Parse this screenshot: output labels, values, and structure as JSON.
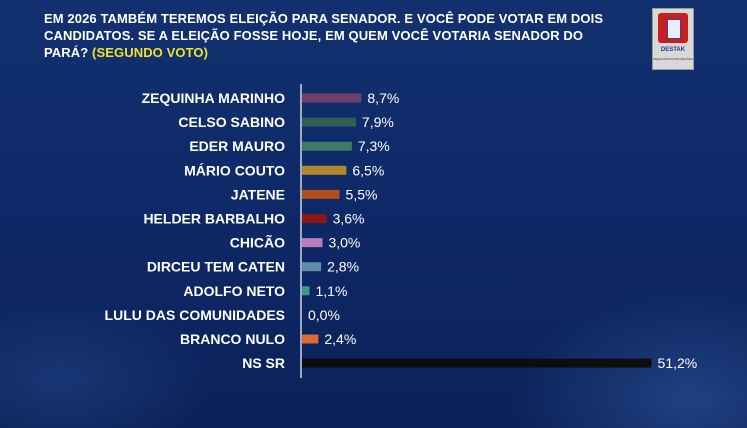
{
  "header": {
    "question": "EM 2026 TAMBÉM TEREMOS ELEIÇÃO PARA SENADOR. E VOCÊ PODE VOTAR EM DOIS CANDIDATOS. SE A ELEIÇÃO FOSSE HOJE, EM QUEM VOCÊ VOTARIA SENADOR DO PARÁ?",
    "highlight": "(SEGUNDO VOTO)"
  },
  "logo": {
    "brand": "DESTAK",
    "tagline": "PESQUISAS E PROJEÇÕES"
  },
  "colors": {
    "background": "#0f2a68",
    "highlight": "#f2e22a",
    "axis": "#ffffff"
  },
  "chart_data": {
    "type": "bar",
    "orientation": "horizontal",
    "categories": [
      "ZEQUINHA MARINHO",
      "CELSO SABINO",
      "EDER MAURO",
      "MÁRIO COUTO",
      "JATENE",
      "HELDER BARBALHO",
      "CHICÃO",
      "DIRCEU TEM CATEN",
      "ADOLFO NETO",
      "LULU DAS COMUNIDADES",
      "BRANCO NULO",
      "NS SR"
    ],
    "values": [
      8.7,
      7.9,
      7.3,
      6.5,
      5.5,
      3.6,
      3.0,
      2.8,
      1.1,
      0.0,
      2.4,
      51.2
    ],
    "labels": [
      "8,7%",
      "7,9%",
      "7,3%",
      "6,5%",
      "5,5%",
      "3,6%",
      "3,0%",
      "2,8%",
      "1,1%",
      "0,0%",
      "2,4%",
      "51,2%"
    ],
    "colors": [
      "#6e3f6a",
      "#2f5e55",
      "#3f7a64",
      "#b08a2a",
      "#b24f1c",
      "#8c1616",
      "#b87cbe",
      "#5f8ea8",
      "#3a9a8c",
      "#ffffff",
      "#e0692f",
      "#0d0d0d"
    ],
    "xlim": [
      0,
      52
    ],
    "grid": false,
    "legend": "none"
  }
}
